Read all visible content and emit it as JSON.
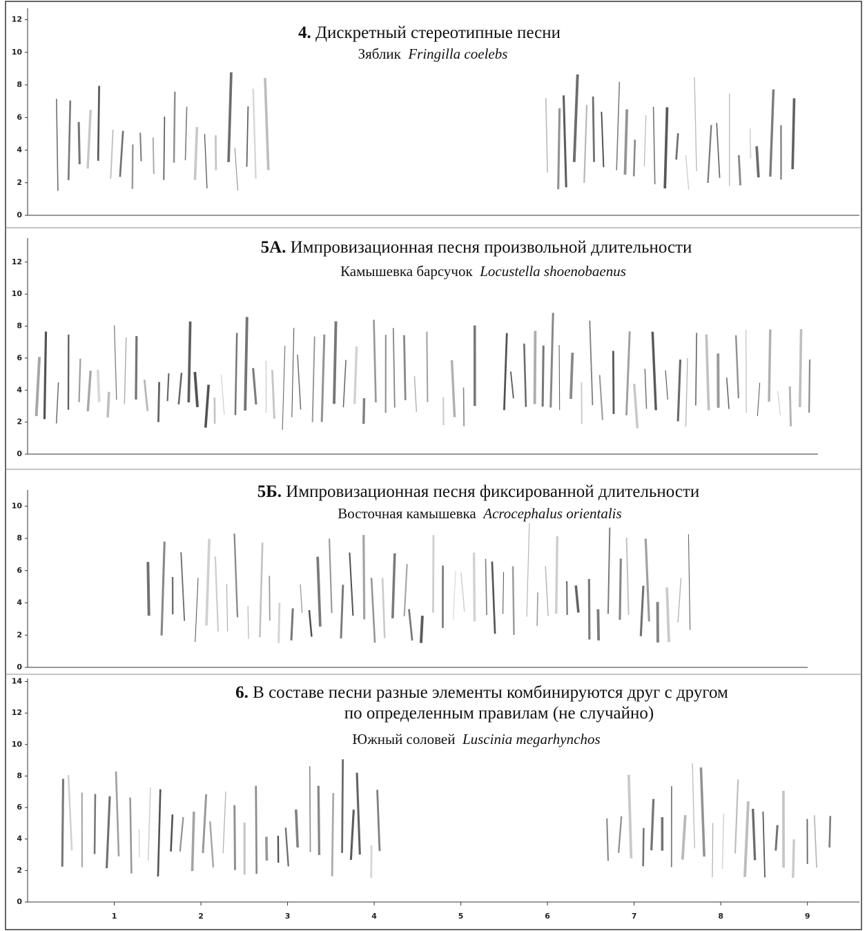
{
  "panels": [
    {
      "number": "4.",
      "title": [
        "Дискретный стереотипные песни"
      ],
      "species_common": "Зяблик",
      "species_latin": "Fringilla coelebs",
      "ylim": [
        0,
        12.7
      ],
      "yticks": [
        0,
        2,
        4,
        6,
        8,
        10,
        12
      ]
    },
    {
      "number": "5А.",
      "title": [
        "Импровизационная песня произвольной длительности"
      ],
      "species_common": "Камышевка барсучок",
      "species_latin": "Locustella shoenobaenus",
      "ylim": [
        0,
        13.5
      ],
      "yticks": [
        0,
        2,
        4,
        6,
        8,
        10,
        12
      ]
    },
    {
      "number": "5Б.",
      "title": [
        "Импровизационная песня фиксированной длительности"
      ],
      "species_common": "Восточная камышевка",
      "species_latin": "Acrocephalus orientalis",
      "ylim": [
        0,
        11
      ],
      "yticks": [
        0,
        2,
        4,
        6,
        8,
        10
      ]
    },
    {
      "number": "6.",
      "title": [
        "В составе песни разные элементы комбинируются друг с другом",
        "по определенным правилам (не случайно)"
      ],
      "species_common": "Южный соловей",
      "species_latin": "Luscinia megarhynchos",
      "ylim": [
        0,
        14.2
      ],
      "yticks": [
        0,
        2,
        4,
        6,
        8,
        10,
        12,
        14
      ]
    }
  ],
  "xlim": [
    0,
    9.6
  ],
  "xticks": [
    1,
    2,
    3,
    4,
    5,
    6,
    7,
    8,
    9
  ]
}
